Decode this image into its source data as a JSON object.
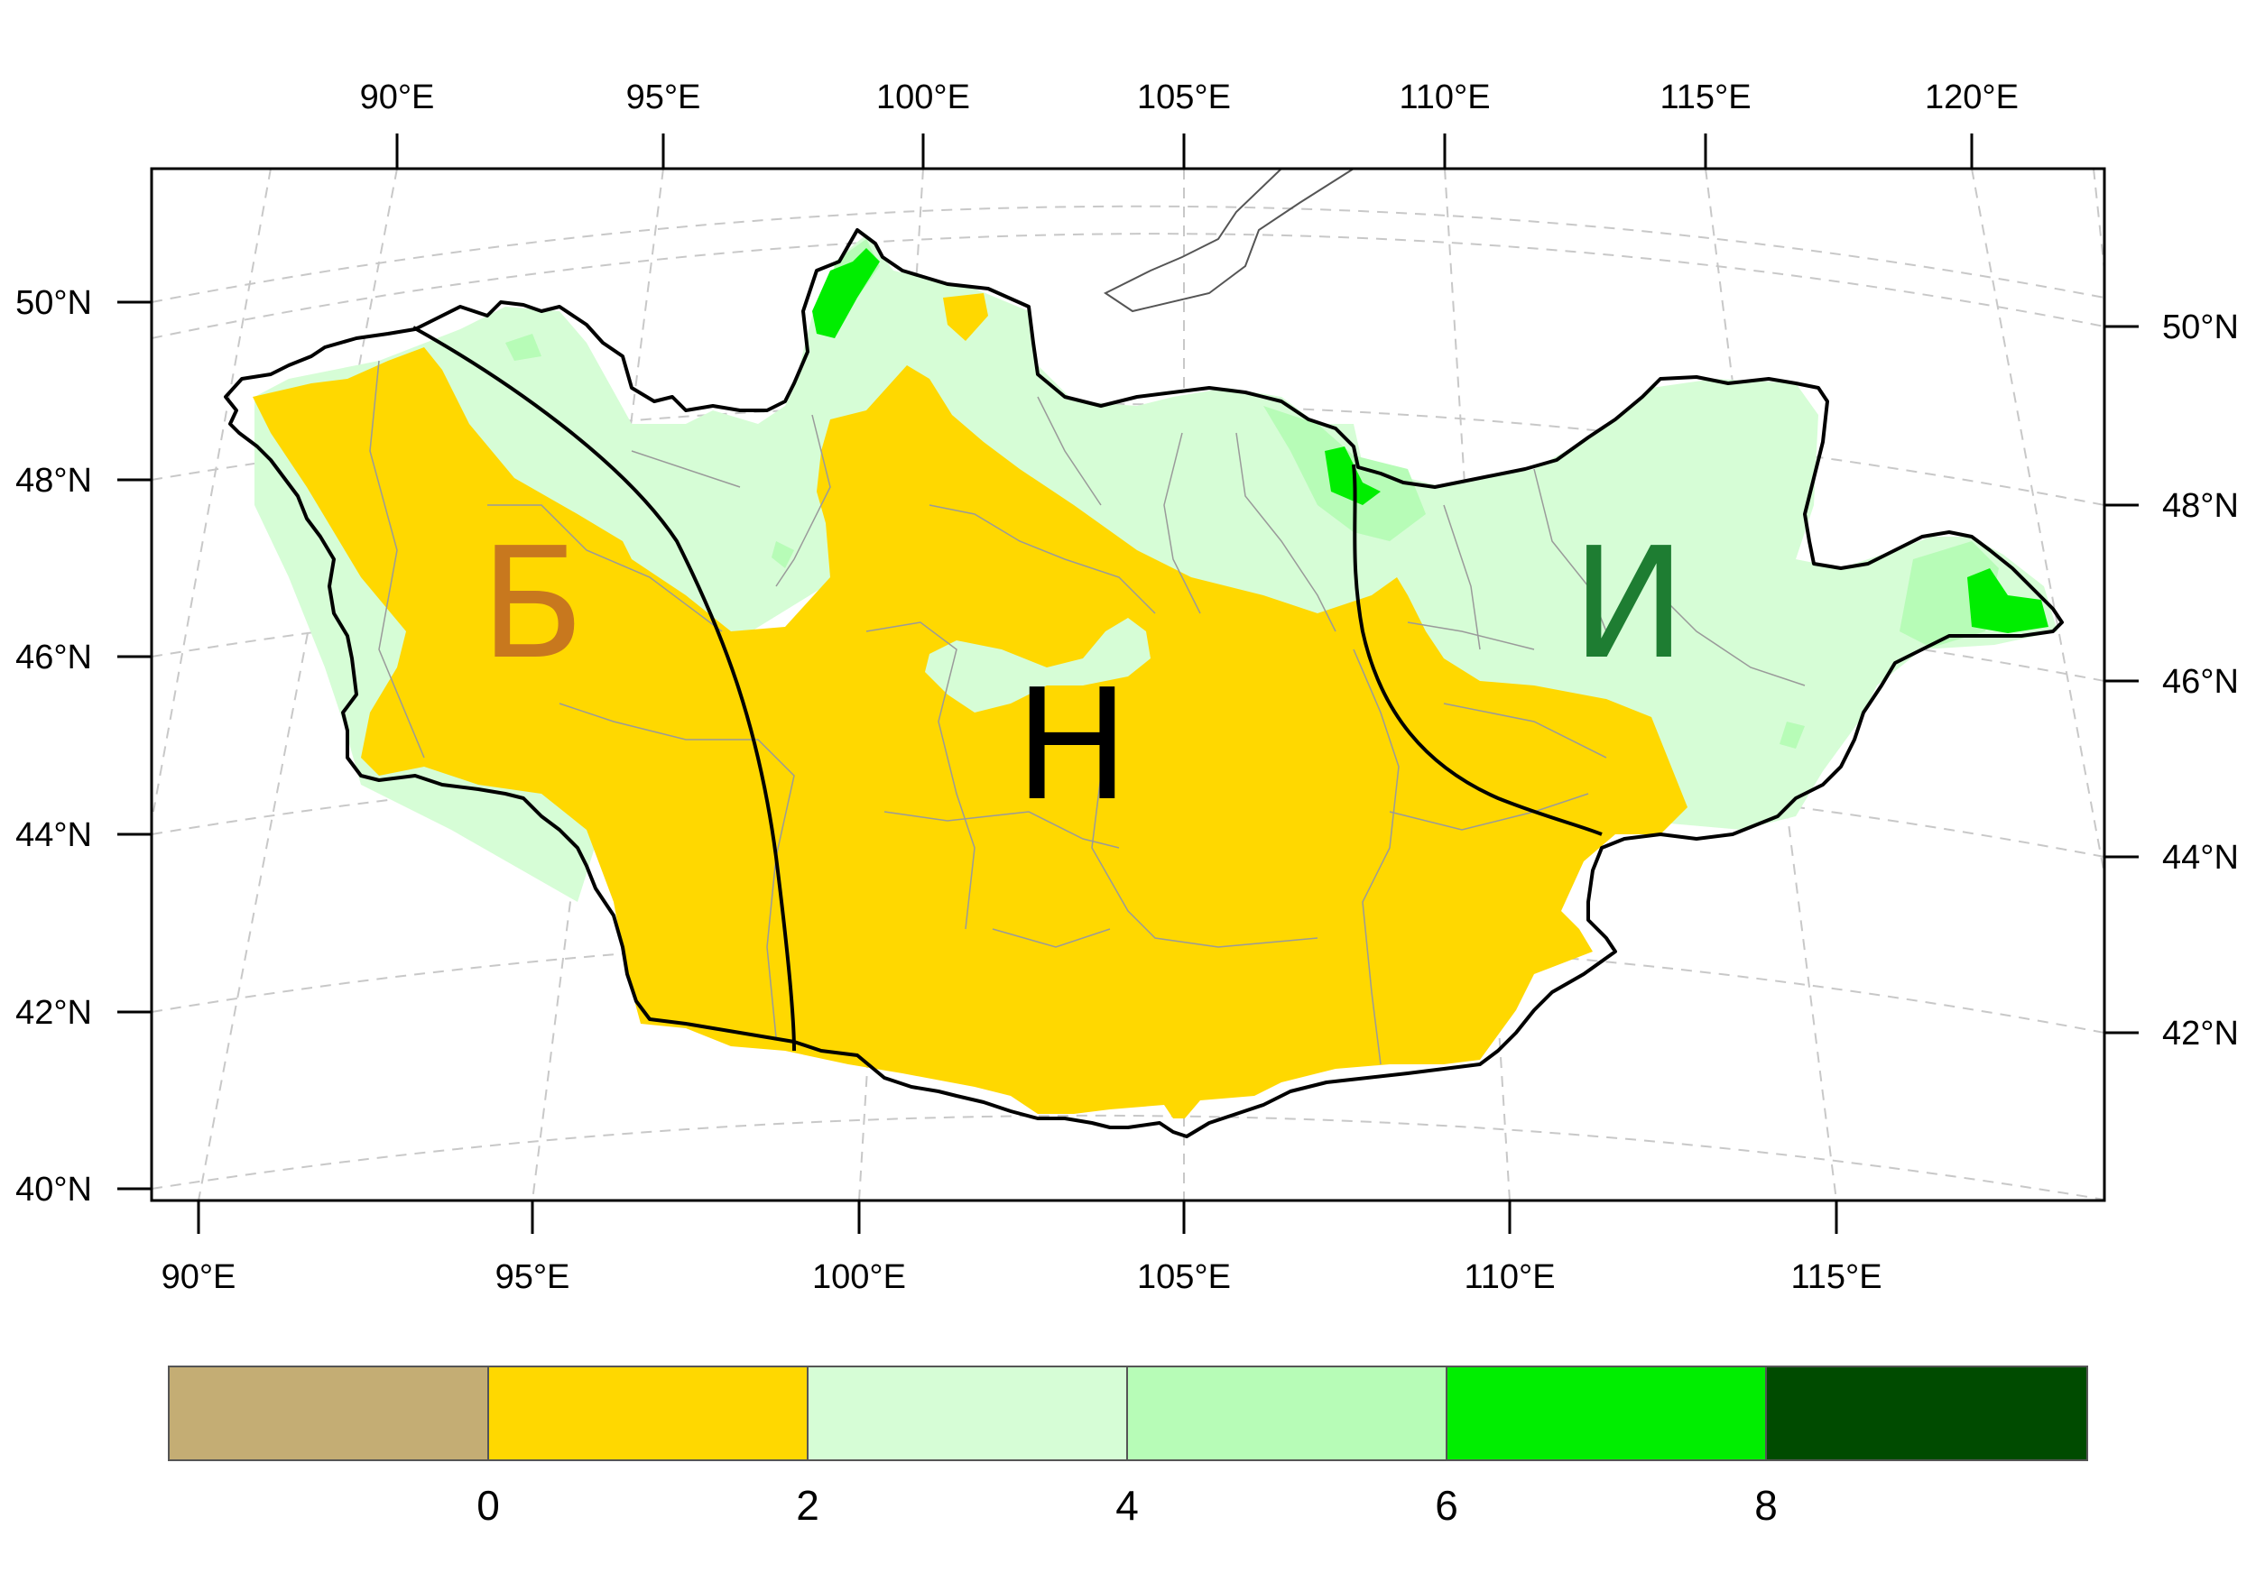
{
  "map": {
    "top_lon_labels": [
      "90°E",
      "95°E",
      "100°E",
      "105°E",
      "110°E",
      "115°E",
      "120°E"
    ],
    "bottom_lon_labels": [
      "90°E",
      "95°E",
      "100°E",
      "105°E",
      "110°E",
      "115°E"
    ],
    "left_lat_labels": [
      "50°N",
      "48°N",
      "46°N",
      "44°N",
      "42°N",
      "40°N"
    ],
    "right_lat_labels": [
      "50°N",
      "48°N",
      "46°N",
      "44°N",
      "42°N"
    ],
    "regions": [
      {
        "id": "west",
        "label": "Б",
        "color": "#C8781E"
      },
      {
        "id": "central",
        "label": "Н",
        "color": "#000000"
      },
      {
        "id": "east",
        "label": "И",
        "color": "#1E7D32"
      }
    ]
  },
  "colorbar": {
    "colors": [
      "#C4AD74",
      "#FFD800",
      "#D6FDD6",
      "#B7FCB7",
      "#00EE00",
      "#004B00"
    ],
    "tick_labels": [
      "0",
      "2",
      "4",
      "6",
      "8"
    ]
  }
}
